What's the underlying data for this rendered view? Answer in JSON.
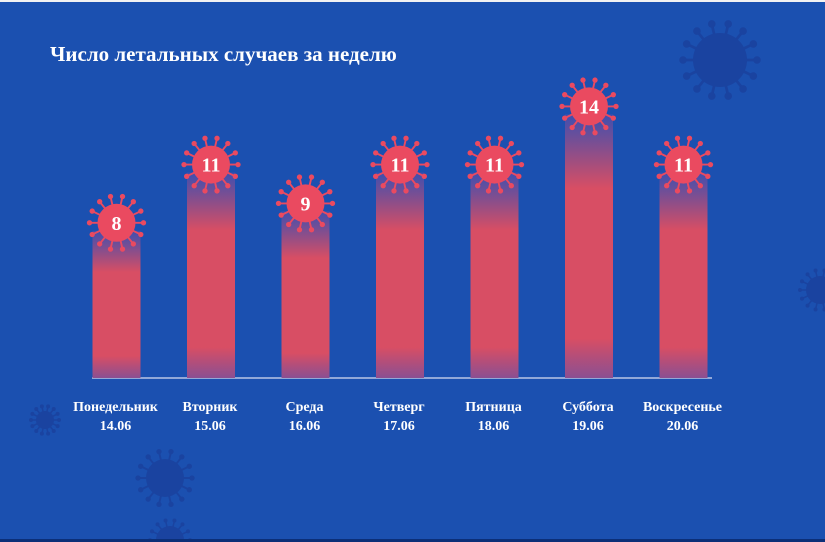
{
  "title": "Число летальных случаев за неделю",
  "colors": {
    "background": "#1b50b0",
    "bar": "#d84e64",
    "virus": "#ea4a60",
    "text": "#ffffff",
    "decor_virus": "#1a43a0"
  },
  "chart_data": {
    "type": "bar",
    "title": "Число летальных случаев за неделю",
    "categories": [
      "Понедельник",
      "Вторник",
      "Среда",
      "Четверг",
      "Пятница",
      "Суббота",
      "Воскресенье"
    ],
    "dates": [
      "14.06",
      "15.06",
      "16.06",
      "17.06",
      "18.06",
      "19.06",
      "20.06"
    ],
    "values": [
      8,
      11,
      9,
      11,
      11,
      14,
      11
    ],
    "xlabel": "",
    "ylabel": "",
    "grid": false,
    "data_labels": true,
    "marker_icon": "virus-icon"
  }
}
